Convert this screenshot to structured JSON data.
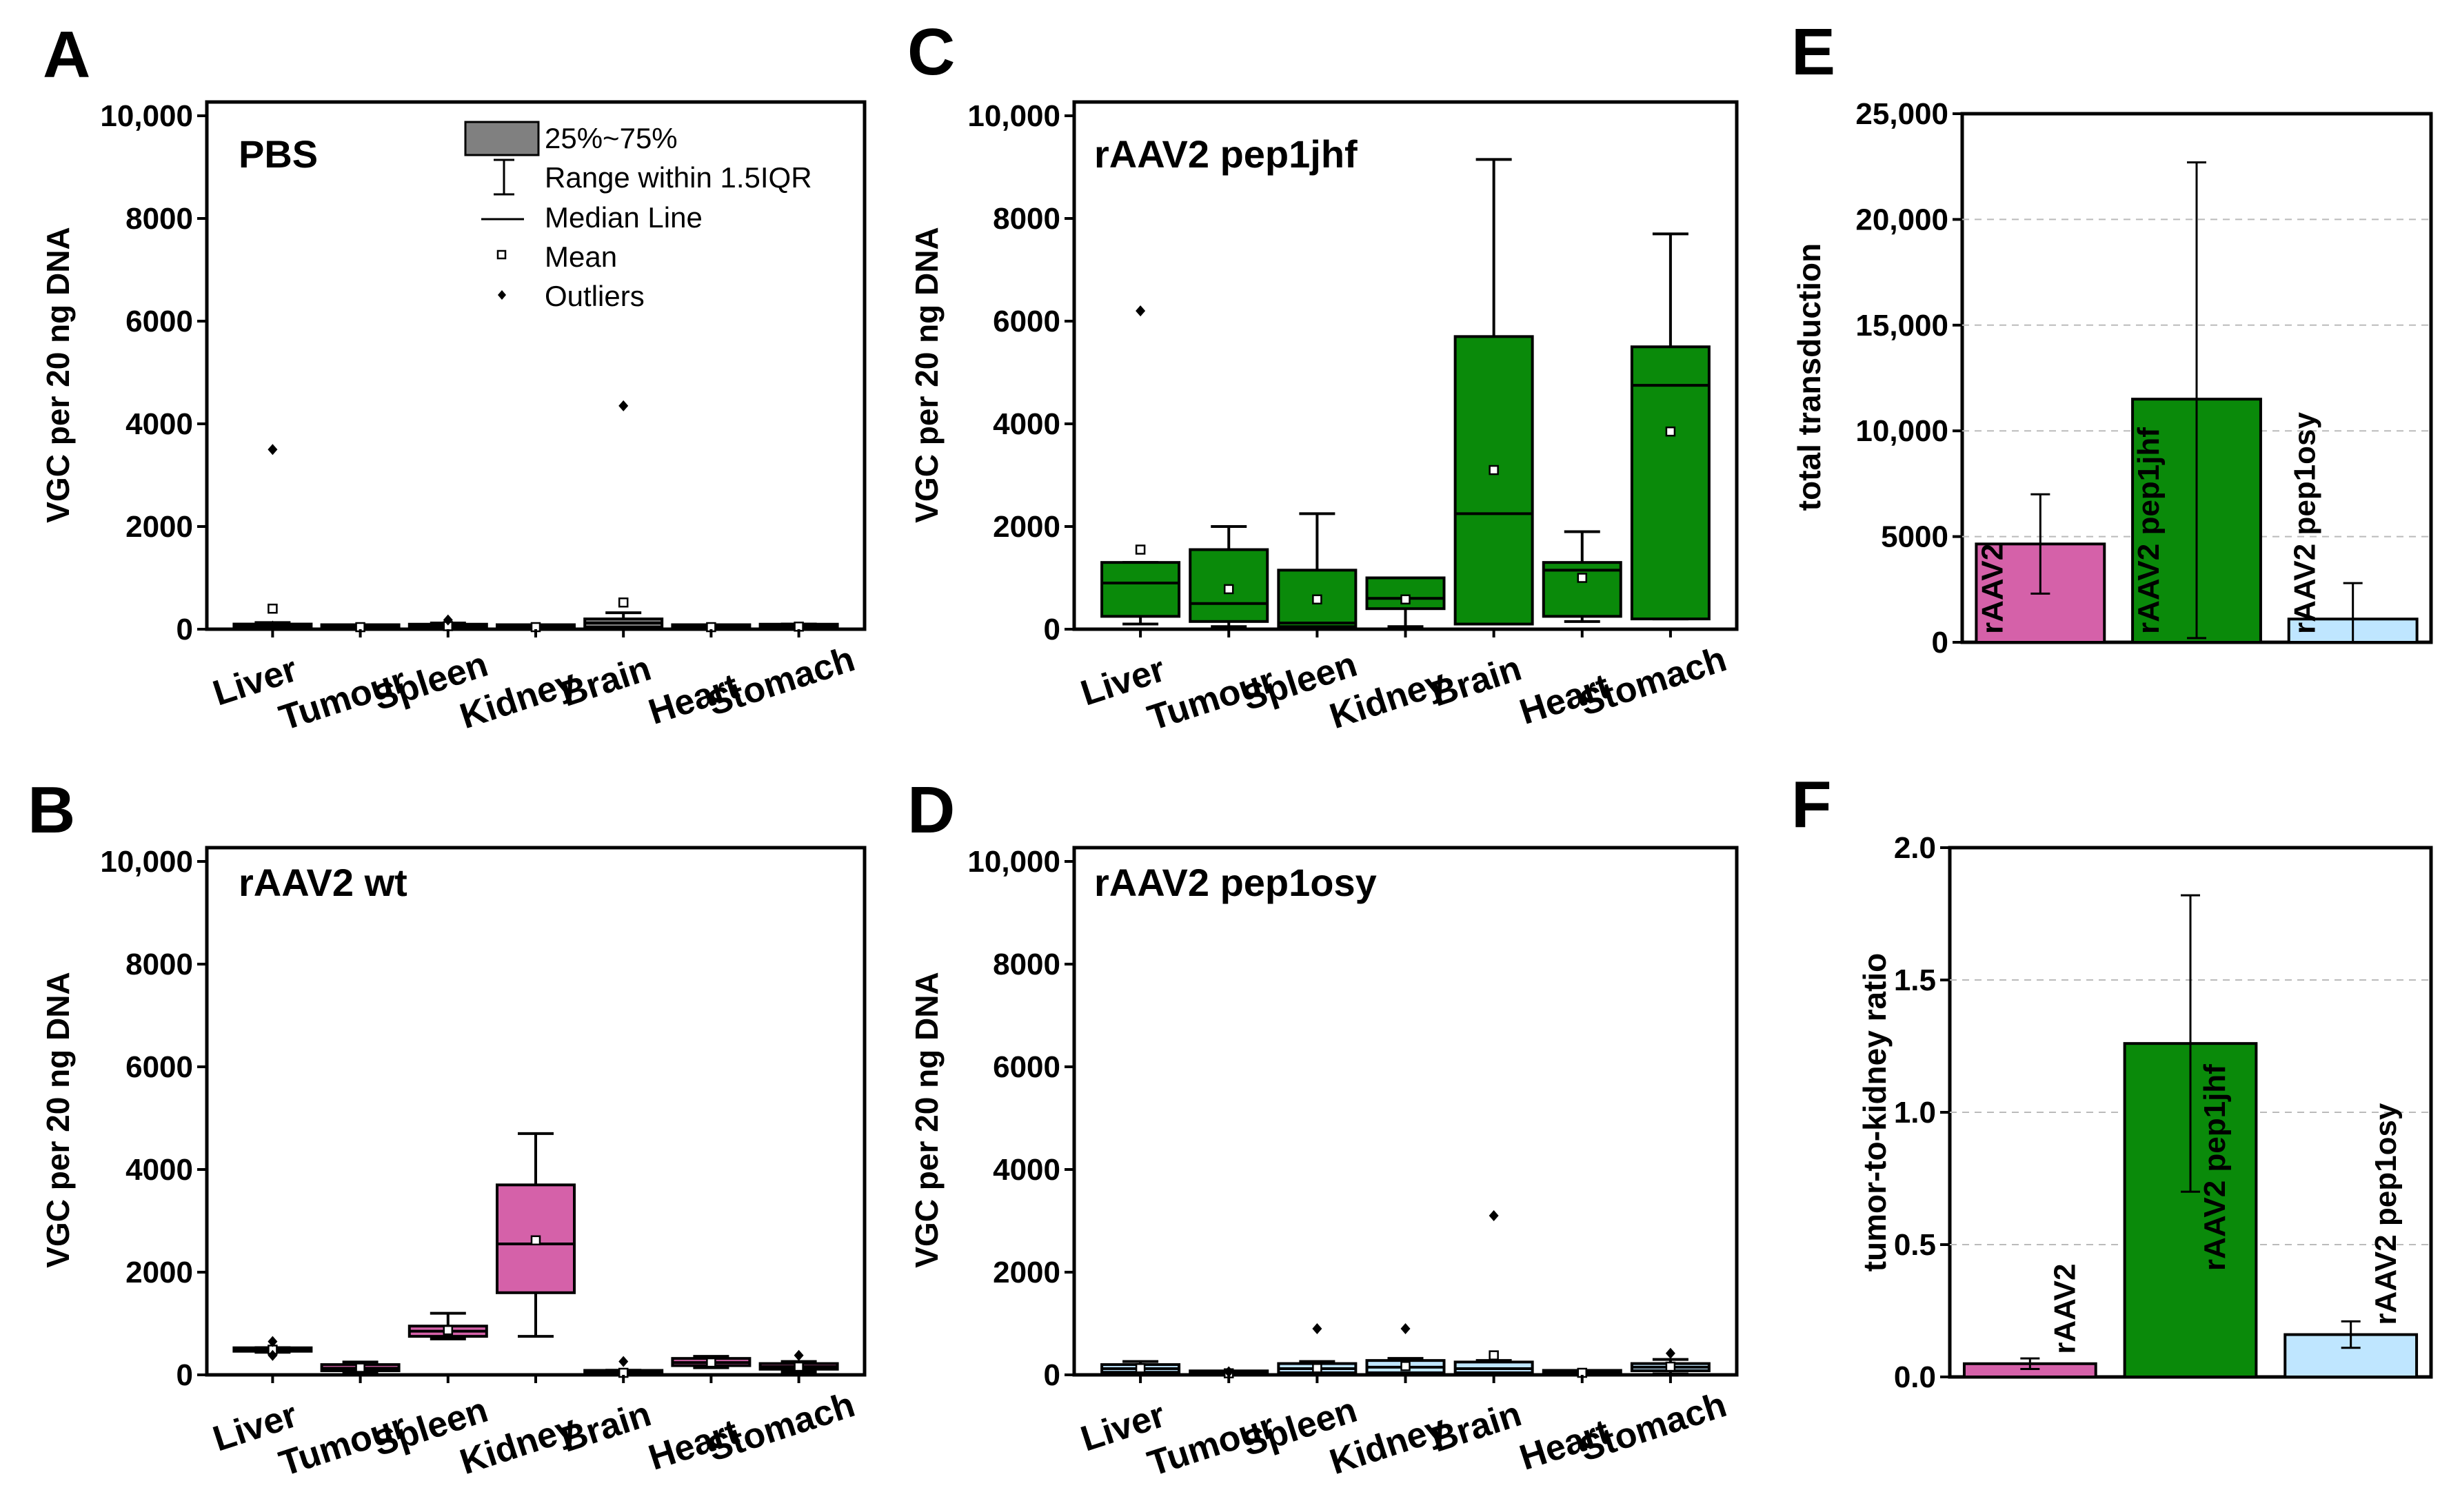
{
  "colors": {
    "pbs": "#808080",
    "wt": "#d561a9",
    "pep1jhf": "#0a8a0a",
    "pep1osy": "#bfe6ff",
    "outline": "#000000"
  },
  "legend": {
    "box_label": "25%~75%",
    "whisker_label": "Range within 1.5IQR",
    "median_label": "Median Line",
    "mean_label": "Mean",
    "outlier_label": "Outliers"
  },
  "chart_data": [
    {
      "id": "A",
      "type": "box",
      "panel_label": "A",
      "title": "PBS",
      "color_key": "pbs",
      "ylabel": "VGC per 20 ng DNA",
      "ylim": [
        0,
        10000
      ],
      "yticks": [
        "0",
        "2000",
        "4000",
        "6000",
        "8000",
        "10,000"
      ],
      "categories": [
        "Liver",
        "Tumour",
        "Spleen",
        "Kidney",
        "Brain",
        "Heart",
        "Stomach"
      ],
      "boxes": [
        {
          "q1": 30,
          "median": 60,
          "q3": 100,
          "whislo": 10,
          "whishi": 130,
          "mean": 400,
          "outliers": [
            3500,
            60
          ]
        },
        {
          "q1": 20,
          "median": 40,
          "q3": 60,
          "whislo": 10,
          "whishi": 80,
          "mean": 40,
          "outliers": []
        },
        {
          "q1": 30,
          "median": 60,
          "q3": 90,
          "whislo": 10,
          "whishi": 120,
          "mean": 60,
          "outliers": [
            180
          ]
        },
        {
          "q1": 20,
          "median": 40,
          "q3": 60,
          "whislo": 10,
          "whishi": 80,
          "mean": 40,
          "outliers": []
        },
        {
          "q1": 40,
          "median": 120,
          "q3": 200,
          "whislo": 10,
          "whishi": 320,
          "mean": 520,
          "outliers": [
            4350
          ]
        },
        {
          "q1": 20,
          "median": 40,
          "q3": 60,
          "whislo": 10,
          "whishi": 80,
          "mean": 40,
          "outliers": []
        },
        {
          "q1": 30,
          "median": 50,
          "q3": 80,
          "whislo": 10,
          "whishi": 100,
          "mean": 50,
          "outliers": []
        }
      ]
    },
    {
      "id": "B",
      "type": "box",
      "panel_label": "B",
      "title": "rAAV2 wt",
      "color_key": "wt",
      "ylabel": "VGC per 20 ng DNA",
      "ylim": [
        0,
        10000
      ],
      "yticks": [
        "0",
        "2000",
        "4000",
        "6000",
        "8000",
        "10,000"
      ],
      "categories": [
        "Liver",
        "Tumour",
        "Spleen",
        "Kidney",
        "Brain",
        "Heart",
        "Stomach"
      ],
      "boxes": [
        {
          "q1": 460,
          "median": 490,
          "q3": 510,
          "whislo": 440,
          "whishi": 530,
          "mean": 490,
          "outliers": [
            650,
            380
          ]
        },
        {
          "q1": 80,
          "median": 130,
          "q3": 200,
          "whislo": 30,
          "whishi": 250,
          "mean": 140,
          "outliers": []
        },
        {
          "q1": 750,
          "median": 850,
          "q3": 950,
          "whislo": 700,
          "whishi": 1200,
          "mean": 870,
          "outliers": []
        },
        {
          "q1": 1600,
          "median": 2550,
          "q3": 3700,
          "whislo": 750,
          "whishi": 4700,
          "mean": 2620,
          "outliers": []
        },
        {
          "q1": 20,
          "median": 40,
          "q3": 70,
          "whislo": 10,
          "whishi": 90,
          "mean": 40,
          "outliers": [
            260
          ]
        },
        {
          "q1": 180,
          "median": 240,
          "q3": 320,
          "whislo": 140,
          "whishi": 360,
          "mean": 240,
          "outliers": []
        },
        {
          "q1": 110,
          "median": 160,
          "q3": 220,
          "whislo": 60,
          "whishi": 260,
          "mean": 160,
          "outliers": [
            380
          ]
        }
      ]
    },
    {
      "id": "C",
      "type": "box",
      "panel_label": "C",
      "title": "rAAV2 pep1jhf",
      "color_key": "pep1jhf",
      "ylabel": "VGC per 20 ng DNA",
      "ylim": [
        0,
        10000
      ],
      "yticks": [
        "0",
        "2000",
        "4000",
        "6000",
        "8000",
        "10,000"
      ],
      "categories": [
        "Liver",
        "Tumour",
        "Spleen",
        "Kidney",
        "Brain",
        "Heart",
        "Stomach"
      ],
      "boxes": [
        {
          "q1": 250,
          "median": 900,
          "q3": 1300,
          "whislo": 100,
          "whishi": 1300,
          "mean": 1550,
          "outliers": [
            6200
          ]
        },
        {
          "q1": 150,
          "median": 500,
          "q3": 1550,
          "whislo": 50,
          "whishi": 2000,
          "mean": 780,
          "outliers": []
        },
        {
          "q1": 50,
          "median": 120,
          "q3": 1150,
          "whislo": 20,
          "whishi": 2250,
          "mean": 580,
          "outliers": []
        },
        {
          "q1": 400,
          "median": 600,
          "q3": 1000,
          "whislo": 50,
          "whishi": 1000,
          "mean": 580,
          "outliers": []
        },
        {
          "q1": 100,
          "median": 2250,
          "q3": 5700,
          "whislo": 100,
          "whishi": 9150,
          "mean": 3100,
          "outliers": []
        },
        {
          "q1": 250,
          "median": 1150,
          "q3": 1300,
          "whislo": 150,
          "whishi": 1900,
          "mean": 1000,
          "outliers": []
        },
        {
          "q1": 200,
          "median": 4750,
          "q3": 5500,
          "whislo": 200,
          "whishi": 7700,
          "mean": 3850,
          "outliers": []
        }
      ]
    },
    {
      "id": "D",
      "type": "box",
      "panel_label": "D",
      "title": "rAAV2 pep1osy",
      "color_key": "pep1osy",
      "ylabel": "VGC per 20 ng DNA",
      "ylim": [
        0,
        10000
      ],
      "yticks": [
        "0",
        "2000",
        "4000",
        "6000",
        "8000",
        "10,000"
      ],
      "categories": [
        "Liver",
        "Tumour",
        "Spleen",
        "Kidney",
        "Brain",
        "Heart",
        "Stomach"
      ],
      "boxes": [
        {
          "q1": 50,
          "median": 120,
          "q3": 200,
          "whislo": 10,
          "whishi": 260,
          "mean": 130,
          "outliers": []
        },
        {
          "q1": 10,
          "median": 30,
          "q3": 50,
          "whislo": 0,
          "whishi": 60,
          "mean": 30,
          "outliers": [
            60
          ]
        },
        {
          "q1": 40,
          "median": 120,
          "q3": 220,
          "whislo": 10,
          "whishi": 260,
          "mean": 130,
          "outliers": [
            900
          ]
        },
        {
          "q1": 40,
          "median": 150,
          "q3": 280,
          "whislo": 10,
          "whishi": 320,
          "mean": 170,
          "outliers": [
            900
          ]
        },
        {
          "q1": 40,
          "median": 120,
          "q3": 250,
          "whislo": 10,
          "whishi": 280,
          "mean": 380,
          "outliers": [
            3100
          ]
        },
        {
          "q1": 20,
          "median": 40,
          "q3": 60,
          "whislo": 10,
          "whishi": 80,
          "mean": 40,
          "outliers": []
        },
        {
          "q1": 80,
          "median": 150,
          "q3": 220,
          "whislo": 20,
          "whishi": 300,
          "mean": 160,
          "outliers": [
            420
          ]
        }
      ]
    },
    {
      "id": "E",
      "type": "bar",
      "panel_label": "E",
      "title": "",
      "ylabel": "total transduction",
      "ylim": [
        0,
        25000
      ],
      "yticks": [
        "0",
        "5000",
        "10,000",
        "15,000",
        "20,000",
        "25,000"
      ],
      "categories": [
        "rAAV2",
        "rAAV2 pep1jhf",
        "rAAV2 pep1osy"
      ],
      "color_keys": [
        "wt",
        "pep1jhf",
        "pep1osy"
      ],
      "values": [
        4650,
        11500,
        1100
      ],
      "err_low": [
        2300,
        200,
        0
      ],
      "err_high": [
        7000,
        22700,
        2800
      ],
      "label_anchor": "bottom",
      "grid": true
    },
    {
      "id": "F",
      "type": "bar",
      "panel_label": "F",
      "title": "",
      "ylabel": "tumor-to-kidney ratio",
      "ylim": [
        0,
        2.0
      ],
      "yticks": [
        "0.0",
        "0.5",
        "1.0",
        "1.5",
        "2.0"
      ],
      "categories": [
        "rAAV2",
        "rAAV2 pep1jhf",
        "rAAV2 pep1osy"
      ],
      "color_keys": [
        "wt",
        "pep1jhf",
        "pep1osy"
      ],
      "values": [
        0.05,
        1.26,
        0.16
      ],
      "err_low": [
        0.03,
        0.7,
        0.11
      ],
      "err_high": [
        0.07,
        1.82,
        0.21
      ],
      "label_anchor": "top",
      "grid": true
    }
  ]
}
